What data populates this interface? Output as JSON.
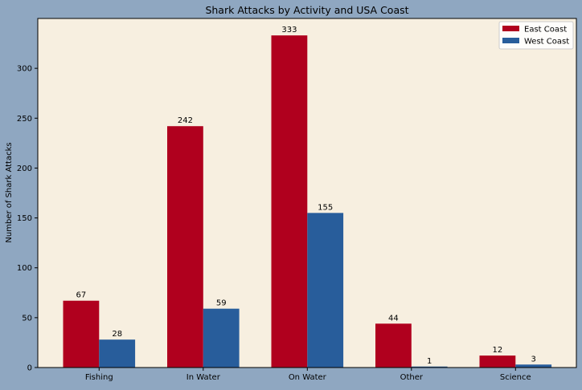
{
  "chart_data": {
    "type": "bar",
    "title": "Shark Attacks by Activity and USA Coast",
    "xlabel": "",
    "ylabel": "Number of Shark Attacks",
    "categories": [
      "Fishing",
      "In Water",
      "On Water",
      "Other",
      "Science"
    ],
    "series": [
      {
        "name": "East Coast",
        "color": "#b0001e",
        "values": [
          67,
          242,
          333,
          44,
          12
        ]
      },
      {
        "name": "West Coast",
        "color": "#285d9b",
        "values": [
          28,
          59,
          155,
          1,
          3
        ]
      }
    ],
    "ylim": [
      0,
      350
    ],
    "yticks": [
      0,
      50,
      100,
      150,
      200,
      250,
      300
    ],
    "data_labels": true,
    "legend_position": "top-right",
    "grid": false,
    "plot_background": "#f7efe0",
    "figure_background": "#8fa7c1"
  }
}
